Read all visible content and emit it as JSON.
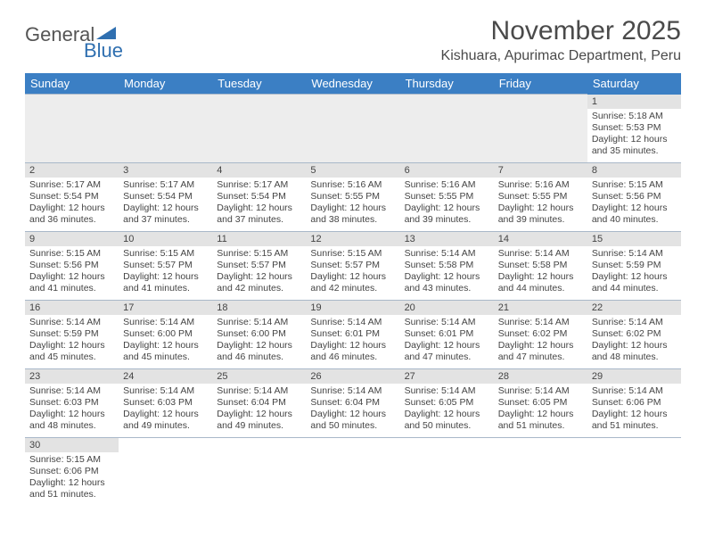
{
  "logo": {
    "part1": "General",
    "part2": "Blue"
  },
  "title": "November 2025",
  "location": "Kishuara, Apurimac Department, Peru",
  "colors": {
    "header_bg": "#3b7fc4",
    "gray_fill": "#e3e3e3",
    "empty_fill": "#ededed",
    "rule": "#a9b8c9",
    "logo_gray": "#555555",
    "logo_blue": "#2f6fb0"
  },
  "day_headers": [
    "Sunday",
    "Monday",
    "Tuesday",
    "Wednesday",
    "Thursday",
    "Friday",
    "Saturday"
  ],
  "weeks": [
    [
      null,
      null,
      null,
      null,
      null,
      null,
      {
        "date": "1",
        "sunrise": "Sunrise: 5:18 AM",
        "sunset": "Sunset: 5:53 PM",
        "daylight": "Daylight: 12 hours and 35 minutes."
      }
    ],
    [
      {
        "date": "2",
        "sunrise": "Sunrise: 5:17 AM",
        "sunset": "Sunset: 5:54 PM",
        "daylight": "Daylight: 12 hours and 36 minutes."
      },
      {
        "date": "3",
        "sunrise": "Sunrise: 5:17 AM",
        "sunset": "Sunset: 5:54 PM",
        "daylight": "Daylight: 12 hours and 37 minutes."
      },
      {
        "date": "4",
        "sunrise": "Sunrise: 5:17 AM",
        "sunset": "Sunset: 5:54 PM",
        "daylight": "Daylight: 12 hours and 37 minutes."
      },
      {
        "date": "5",
        "sunrise": "Sunrise: 5:16 AM",
        "sunset": "Sunset: 5:55 PM",
        "daylight": "Daylight: 12 hours and 38 minutes."
      },
      {
        "date": "6",
        "sunrise": "Sunrise: 5:16 AM",
        "sunset": "Sunset: 5:55 PM",
        "daylight": "Daylight: 12 hours and 39 minutes."
      },
      {
        "date": "7",
        "sunrise": "Sunrise: 5:16 AM",
        "sunset": "Sunset: 5:55 PM",
        "daylight": "Daylight: 12 hours and 39 minutes."
      },
      {
        "date": "8",
        "sunrise": "Sunrise: 5:15 AM",
        "sunset": "Sunset: 5:56 PM",
        "daylight": "Daylight: 12 hours and 40 minutes."
      }
    ],
    [
      {
        "date": "9",
        "sunrise": "Sunrise: 5:15 AM",
        "sunset": "Sunset: 5:56 PM",
        "daylight": "Daylight: 12 hours and 41 minutes."
      },
      {
        "date": "10",
        "sunrise": "Sunrise: 5:15 AM",
        "sunset": "Sunset: 5:57 PM",
        "daylight": "Daylight: 12 hours and 41 minutes."
      },
      {
        "date": "11",
        "sunrise": "Sunrise: 5:15 AM",
        "sunset": "Sunset: 5:57 PM",
        "daylight": "Daylight: 12 hours and 42 minutes."
      },
      {
        "date": "12",
        "sunrise": "Sunrise: 5:15 AM",
        "sunset": "Sunset: 5:57 PM",
        "daylight": "Daylight: 12 hours and 42 minutes."
      },
      {
        "date": "13",
        "sunrise": "Sunrise: 5:14 AM",
        "sunset": "Sunset: 5:58 PM",
        "daylight": "Daylight: 12 hours and 43 minutes."
      },
      {
        "date": "14",
        "sunrise": "Sunrise: 5:14 AM",
        "sunset": "Sunset: 5:58 PM",
        "daylight": "Daylight: 12 hours and 44 minutes."
      },
      {
        "date": "15",
        "sunrise": "Sunrise: 5:14 AM",
        "sunset": "Sunset: 5:59 PM",
        "daylight": "Daylight: 12 hours and 44 minutes."
      }
    ],
    [
      {
        "date": "16",
        "sunrise": "Sunrise: 5:14 AM",
        "sunset": "Sunset: 5:59 PM",
        "daylight": "Daylight: 12 hours and 45 minutes."
      },
      {
        "date": "17",
        "sunrise": "Sunrise: 5:14 AM",
        "sunset": "Sunset: 6:00 PM",
        "daylight": "Daylight: 12 hours and 45 minutes."
      },
      {
        "date": "18",
        "sunrise": "Sunrise: 5:14 AM",
        "sunset": "Sunset: 6:00 PM",
        "daylight": "Daylight: 12 hours and 46 minutes."
      },
      {
        "date": "19",
        "sunrise": "Sunrise: 5:14 AM",
        "sunset": "Sunset: 6:01 PM",
        "daylight": "Daylight: 12 hours and 46 minutes."
      },
      {
        "date": "20",
        "sunrise": "Sunrise: 5:14 AM",
        "sunset": "Sunset: 6:01 PM",
        "daylight": "Daylight: 12 hours and 47 minutes."
      },
      {
        "date": "21",
        "sunrise": "Sunrise: 5:14 AM",
        "sunset": "Sunset: 6:02 PM",
        "daylight": "Daylight: 12 hours and 47 minutes."
      },
      {
        "date": "22",
        "sunrise": "Sunrise: 5:14 AM",
        "sunset": "Sunset: 6:02 PM",
        "daylight": "Daylight: 12 hours and 48 minutes."
      }
    ],
    [
      {
        "date": "23",
        "sunrise": "Sunrise: 5:14 AM",
        "sunset": "Sunset: 6:03 PM",
        "daylight": "Daylight: 12 hours and 48 minutes."
      },
      {
        "date": "24",
        "sunrise": "Sunrise: 5:14 AM",
        "sunset": "Sunset: 6:03 PM",
        "daylight": "Daylight: 12 hours and 49 minutes."
      },
      {
        "date": "25",
        "sunrise": "Sunrise: 5:14 AM",
        "sunset": "Sunset: 6:04 PM",
        "daylight": "Daylight: 12 hours and 49 minutes."
      },
      {
        "date": "26",
        "sunrise": "Sunrise: 5:14 AM",
        "sunset": "Sunset: 6:04 PM",
        "daylight": "Daylight: 12 hours and 50 minutes."
      },
      {
        "date": "27",
        "sunrise": "Sunrise: 5:14 AM",
        "sunset": "Sunset: 6:05 PM",
        "daylight": "Daylight: 12 hours and 50 minutes."
      },
      {
        "date": "28",
        "sunrise": "Sunrise: 5:14 AM",
        "sunset": "Sunset: 6:05 PM",
        "daylight": "Daylight: 12 hours and 51 minutes."
      },
      {
        "date": "29",
        "sunrise": "Sunrise: 5:14 AM",
        "sunset": "Sunset: 6:06 PM",
        "daylight": "Daylight: 12 hours and 51 minutes."
      }
    ],
    [
      {
        "date": "30",
        "sunrise": "Sunrise: 5:15 AM",
        "sunset": "Sunset: 6:06 PM",
        "daylight": "Daylight: 12 hours and 51 minutes."
      },
      null,
      null,
      null,
      null,
      null,
      null
    ]
  ]
}
